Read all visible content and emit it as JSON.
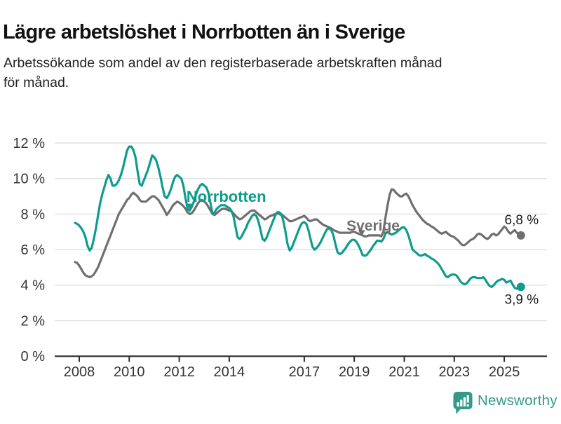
{
  "header": {
    "title": "Lägre arbetslöshet i Norrbotten än i Sverige",
    "subtitle_line1": "Arbetssökande som andel av den registerbaserade arbetskraften månad",
    "subtitle_line2": "för månad."
  },
  "chart_data": {
    "type": "line",
    "title": "Lägre arbetslöshet i Norrbotten än i Sverige",
    "unit": "%",
    "grid": true,
    "x_axis": {
      "tick_years": [
        2008,
        2010,
        2012,
        2014,
        2017,
        2019,
        2021,
        2023,
        2025
      ],
      "range": [
        2007.8,
        2026.1
      ]
    },
    "y_axis": {
      "ticks": [
        0,
        2,
        4,
        6,
        8,
        10,
        12
      ],
      "tick_suffix": " %",
      "range": [
        0,
        12
      ]
    },
    "sampling": {
      "start_year": 2007,
      "start_month": 11,
      "frequency": "monthly"
    },
    "series": [
      {
        "name": "Sverige",
        "color": "#6f6f6f",
        "end_label": "6,8 %",
        "final_value": 6.8,
        "values": [
          5.3,
          5.25,
          5.1,
          4.9,
          4.7,
          4.55,
          4.5,
          4.45,
          4.5,
          4.6,
          4.8,
          5.0,
          5.3,
          5.6,
          5.9,
          6.2,
          6.5,
          6.8,
          7.1,
          7.4,
          7.7,
          8.0,
          8.2,
          8.4,
          8.6,
          8.8,
          8.9,
          9.1,
          9.2,
          9.1,
          9.0,
          8.8,
          8.7,
          8.7,
          8.7,
          8.8,
          8.9,
          9.0,
          9.0,
          8.9,
          8.8,
          8.6,
          8.4,
          8.2,
          7.95,
          8.1,
          8.3,
          8.5,
          8.6,
          8.7,
          8.65,
          8.55,
          8.45,
          8.3,
          8.1,
          8.0,
          8.05,
          8.2,
          8.4,
          8.6,
          8.75,
          8.8,
          8.7,
          8.6,
          8.4,
          8.2,
          8.0,
          7.95,
          8.05,
          8.15,
          8.25,
          8.3,
          8.3,
          8.25,
          8.2,
          8.15,
          8.05,
          7.9,
          7.8,
          7.7,
          7.75,
          7.85,
          7.95,
          8.05,
          8.15,
          8.2,
          8.2,
          8.1,
          8.0,
          7.9,
          7.8,
          7.7,
          7.75,
          7.85,
          7.9,
          7.95,
          8.0,
          8.05,
          8.0,
          7.95,
          7.9,
          7.8,
          7.7,
          7.6,
          7.6,
          7.65,
          7.7,
          7.75,
          7.8,
          7.85,
          7.9,
          7.8,
          7.65,
          7.6,
          7.65,
          7.7,
          7.7,
          7.6,
          7.5,
          7.4,
          7.35,
          7.3,
          7.25,
          7.2,
          7.1,
          7.05,
          7.0,
          6.95,
          6.95,
          6.95,
          6.95,
          6.95,
          6.95,
          7.0,
          7.0,
          6.95,
          6.9,
          6.85,
          6.8,
          6.75,
          6.75,
          6.8,
          6.8,
          6.8,
          6.8,
          6.8,
          6.8,
          6.75,
          7.0,
          7.8,
          8.5,
          9.1,
          9.4,
          9.35,
          9.2,
          9.1,
          9.0,
          9.0,
          9.1,
          9.15,
          9.0,
          8.75,
          8.5,
          8.3,
          8.1,
          7.95,
          7.8,
          7.65,
          7.55,
          7.45,
          7.4,
          7.3,
          7.25,
          7.15,
          7.05,
          6.95,
          6.9,
          6.95,
          7.0,
          6.9,
          6.8,
          6.75,
          6.7,
          6.6,
          6.5,
          6.35,
          6.25,
          6.25,
          6.35,
          6.45,
          6.55,
          6.6,
          6.7,
          6.85,
          6.9,
          6.85,
          6.75,
          6.65,
          6.6,
          6.7,
          6.85,
          6.9,
          6.8,
          6.85,
          7.0,
          7.15,
          7.3,
          7.2,
          7.0,
          6.9,
          7.0,
          7.1,
          6.95,
          6.9,
          6.8
        ]
      },
      {
        "name": "Norrbotten",
        "color": "#0e9c8d",
        "end_label": "3,9 %",
        "final_value": 3.9,
        "values": [
          7.5,
          7.45,
          7.35,
          7.2,
          7.0,
          6.7,
          6.2,
          5.95,
          6.1,
          6.6,
          7.2,
          7.9,
          8.6,
          9.1,
          9.5,
          9.9,
          10.2,
          10.0,
          9.6,
          9.6,
          9.7,
          9.9,
          10.2,
          10.6,
          11.1,
          11.6,
          11.8,
          11.8,
          11.6,
          11.2,
          10.4,
          9.7,
          9.6,
          9.9,
          10.2,
          10.5,
          10.9,
          11.3,
          11.2,
          11.0,
          10.6,
          10.1,
          9.5,
          9.0,
          8.9,
          9.1,
          9.4,
          9.8,
          10.1,
          10.2,
          10.1,
          10.0,
          9.6,
          8.9,
          8.3,
          8.2,
          8.4,
          8.7,
          9.1,
          9.4,
          9.6,
          9.7,
          9.6,
          9.5,
          9.2,
          8.6,
          8.0,
          8.1,
          8.3,
          8.4,
          8.5,
          8.5,
          8.5,
          8.4,
          8.35,
          8.2,
          7.9,
          7.3,
          6.7,
          6.6,
          6.75,
          7.0,
          7.2,
          7.5,
          7.7,
          7.9,
          8.0,
          7.9,
          7.6,
          7.1,
          6.6,
          6.5,
          6.7,
          7.0,
          7.3,
          7.6,
          7.9,
          8.1,
          8.1,
          8.0,
          7.6,
          7.0,
          6.3,
          5.95,
          6.1,
          6.4,
          6.7,
          7.0,
          7.3,
          7.5,
          7.55,
          7.45,
          7.1,
          6.6,
          6.15,
          6.0,
          6.1,
          6.25,
          6.45,
          6.7,
          6.95,
          7.15,
          7.2,
          7.1,
          6.8,
          6.3,
          5.85,
          5.75,
          5.8,
          5.95,
          6.1,
          6.3,
          6.45,
          6.55,
          6.55,
          6.45,
          6.25,
          6.0,
          5.7,
          5.65,
          5.7,
          5.85,
          6.0,
          6.2,
          6.35,
          6.5,
          6.5,
          6.45,
          6.6,
          6.9,
          7.0,
          6.9,
          6.85,
          6.9,
          6.95,
          7.05,
          7.15,
          7.25,
          7.25,
          7.1,
          6.8,
          6.4,
          6.0,
          5.9,
          5.8,
          5.7,
          5.65,
          5.7,
          5.75,
          5.65,
          5.6,
          5.5,
          5.45,
          5.35,
          5.25,
          5.1,
          4.9,
          4.7,
          4.5,
          4.45,
          4.55,
          4.6,
          4.6,
          4.55,
          4.4,
          4.2,
          4.1,
          4.05,
          4.1,
          4.25,
          4.4,
          4.45,
          4.45,
          4.4,
          4.4,
          4.4,
          4.45,
          4.3,
          4.1,
          3.95,
          3.9,
          4.0,
          4.15,
          4.25,
          4.3,
          4.35,
          4.3,
          4.15,
          4.2,
          4.25,
          4.05,
          3.85,
          3.8,
          3.85,
          3.9
        ]
      }
    ],
    "annotations": [
      {
        "series": "Norrbotten",
        "text": "Norrbotten",
        "text_year": 2012.29,
        "text_pct": 8.69,
        "pointer_year": 2012.43,
        "pointer_pct": 8.25,
        "color": "#0e9c8d",
        "font_size": 22
      },
      {
        "series": "Sverige",
        "text": "Sverige",
        "text_year": 2018.69,
        "text_pct": 7.07,
        "pointer_year": 2019.3,
        "pointer_pct": 6.76,
        "color": "#6f6f6f",
        "font_size": 21
      }
    ],
    "legend_position": "inline-labels"
  },
  "footer": {
    "brand": "Newsworthy",
    "brand_color": "#35998a"
  }
}
